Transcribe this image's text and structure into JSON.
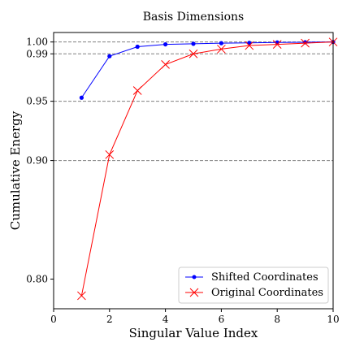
{
  "chart_data": {
    "type": "line",
    "title": "Basis Dimensions",
    "xlabel": "Singular Value Index",
    "ylabel": "Cumulative Energy",
    "xlim": [
      0,
      10
    ],
    "ylim": [
      0.775,
      1.008
    ],
    "xticks": [
      0,
      2,
      4,
      6,
      8,
      10
    ],
    "yticks": [
      0.8,
      0.9,
      0.95,
      0.99,
      1.0
    ],
    "ytick_labels": [
      "0.80",
      "0.90",
      "0.95",
      "0.99",
      "1.00"
    ],
    "reference_lines": [
      0.9,
      0.95,
      0.99,
      1.0
    ],
    "legend_position": "lower-right",
    "series": [
      {
        "name": "Shifted Coordinates",
        "color": "#0000ff",
        "marker": "dot",
        "x": [
          1,
          2,
          3,
          4,
          5,
          6,
          7,
          8,
          9,
          10
        ],
        "y": [
          0.953,
          0.988,
          0.996,
          0.998,
          0.9985,
          0.999,
          0.9993,
          0.9996,
          0.9998,
          1.0
        ]
      },
      {
        "name": "Original Coordinates",
        "color": "#ff0000",
        "marker": "x",
        "x": [
          1,
          2,
          3,
          4,
          5,
          6,
          7,
          8,
          9,
          10
        ],
        "y": [
          0.786,
          0.905,
          0.959,
          0.981,
          0.99,
          0.994,
          0.997,
          0.998,
          0.999,
          1.0
        ]
      }
    ]
  }
}
